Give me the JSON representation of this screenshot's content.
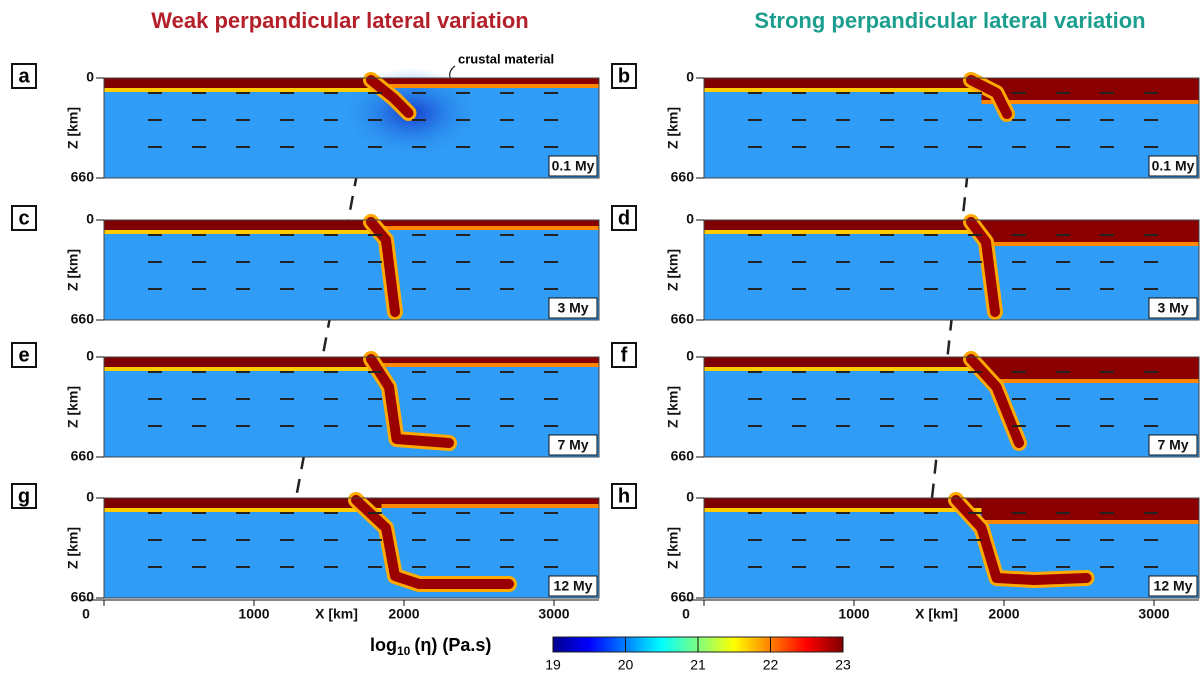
{
  "columns": [
    {
      "title": "Weak perpandicular lateral variation"
    },
    {
      "title": "Strong perpandicular lateral variation"
    }
  ],
  "annotation": "crustal material",
  "panels": [
    {
      "label": "a",
      "time": "0.1 My"
    },
    {
      "label": "b",
      "time": "0.1 My"
    },
    {
      "label": "c",
      "time": "3 My"
    },
    {
      "label": "d",
      "time": "3 My"
    },
    {
      "label": "e",
      "time": "7 My"
    },
    {
      "label": "f",
      "time": "7 My"
    },
    {
      "label": "g",
      "time": "12 My"
    },
    {
      "label": "h",
      "time": "12 My"
    }
  ],
  "z_axis": {
    "label": "Z [km]",
    "ticks": [
      0,
      660
    ]
  },
  "x_axis": {
    "label": "X [km]",
    "ticks": [
      0,
      1000,
      2000,
      3000
    ]
  },
  "colorbar": {
    "label_base": "log",
    "label_sub": "10",
    "label_rest": "(η) (Pa.s)",
    "ticks": [
      19,
      20,
      21,
      22,
      23
    ]
  }
}
